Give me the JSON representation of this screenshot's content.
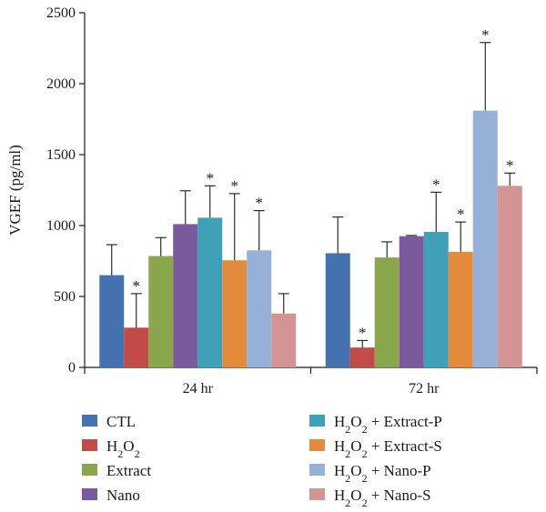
{
  "chart_data": {
    "type": "bar",
    "ylabel": "VGEF (pg/ml)",
    "xlabel": "",
    "ylim": [
      0,
      2500
    ],
    "yticks": [
      0,
      500,
      1000,
      1500,
      2000,
      2500
    ],
    "grid": false,
    "legend_position": "bottom",
    "categories": [
      "24 hr",
      "72 hr"
    ],
    "series": [
      {
        "name": "CTL",
        "legend": {
          "base": "CTL",
          "sub": "",
          "rest": ""
        },
        "color": "#4472b0",
        "values": [
          650,
          805
        ],
        "errors": [
          215,
          255
        ],
        "significant": [
          false,
          false
        ]
      },
      {
        "name": "H2O2",
        "legend": {
          "base": "H",
          "sub": "2",
          "rest": "O",
          "sub2": "2",
          "tail": ""
        },
        "color": "#c04b48",
        "values": [
          280,
          140
        ],
        "errors": [
          240,
          50
        ],
        "significant": [
          true,
          true
        ]
      },
      {
        "name": "Extract",
        "legend": {
          "base": "Extract",
          "sub": "",
          "rest": ""
        },
        "color": "#8aa64c",
        "values": [
          785,
          775
        ],
        "errors": [
          130,
          110
        ],
        "significant": [
          false,
          false
        ]
      },
      {
        "name": "Nano",
        "legend": {
          "base": "Nano",
          "sub": "",
          "rest": ""
        },
        "color": "#7a5a9c",
        "values": [
          1010,
          925
        ],
        "errors": [
          235,
          5
        ],
        "significant": [
          false,
          false
        ]
      },
      {
        "name": "H2O2 + Extract-P",
        "legend": {
          "base": "H",
          "sub": "2",
          "rest": "O",
          "sub2": "2",
          "tail": " + Extract-P"
        },
        "color": "#3fa0b8",
        "values": [
          1055,
          955
        ],
        "errors": [
          225,
          280
        ],
        "significant": [
          true,
          true
        ]
      },
      {
        "name": "H2O2 + Extract-S",
        "legend": {
          "base": "H",
          "sub": "2",
          "rest": "O",
          "sub2": "2",
          "tail": " + Extract-S"
        },
        "color": "#e48a3c",
        "values": [
          755,
          815
        ],
        "errors": [
          470,
          210
        ],
        "significant": [
          true,
          true
        ]
      },
      {
        "name": "H2O2 + Nano-P",
        "legend": {
          "base": "H",
          "sub": "2",
          "rest": "O",
          "sub2": "2",
          "tail": " + Nano-P"
        },
        "color": "#96b0d8",
        "values": [
          825,
          1810
        ],
        "errors": [
          280,
          480
        ],
        "significant": [
          true,
          true
        ]
      },
      {
        "name": "H2O2 + Nano-S",
        "legend": {
          "base": "H",
          "sub": "2",
          "rest": "O",
          "sub2": "2",
          "tail": " + Nano-S"
        },
        "color": "#d59494",
        "values": [
          380,
          1280
        ],
        "errors": [
          140,
          90
        ],
        "significant": [
          false,
          true
        ]
      }
    ],
    "significance_mark": "*"
  }
}
